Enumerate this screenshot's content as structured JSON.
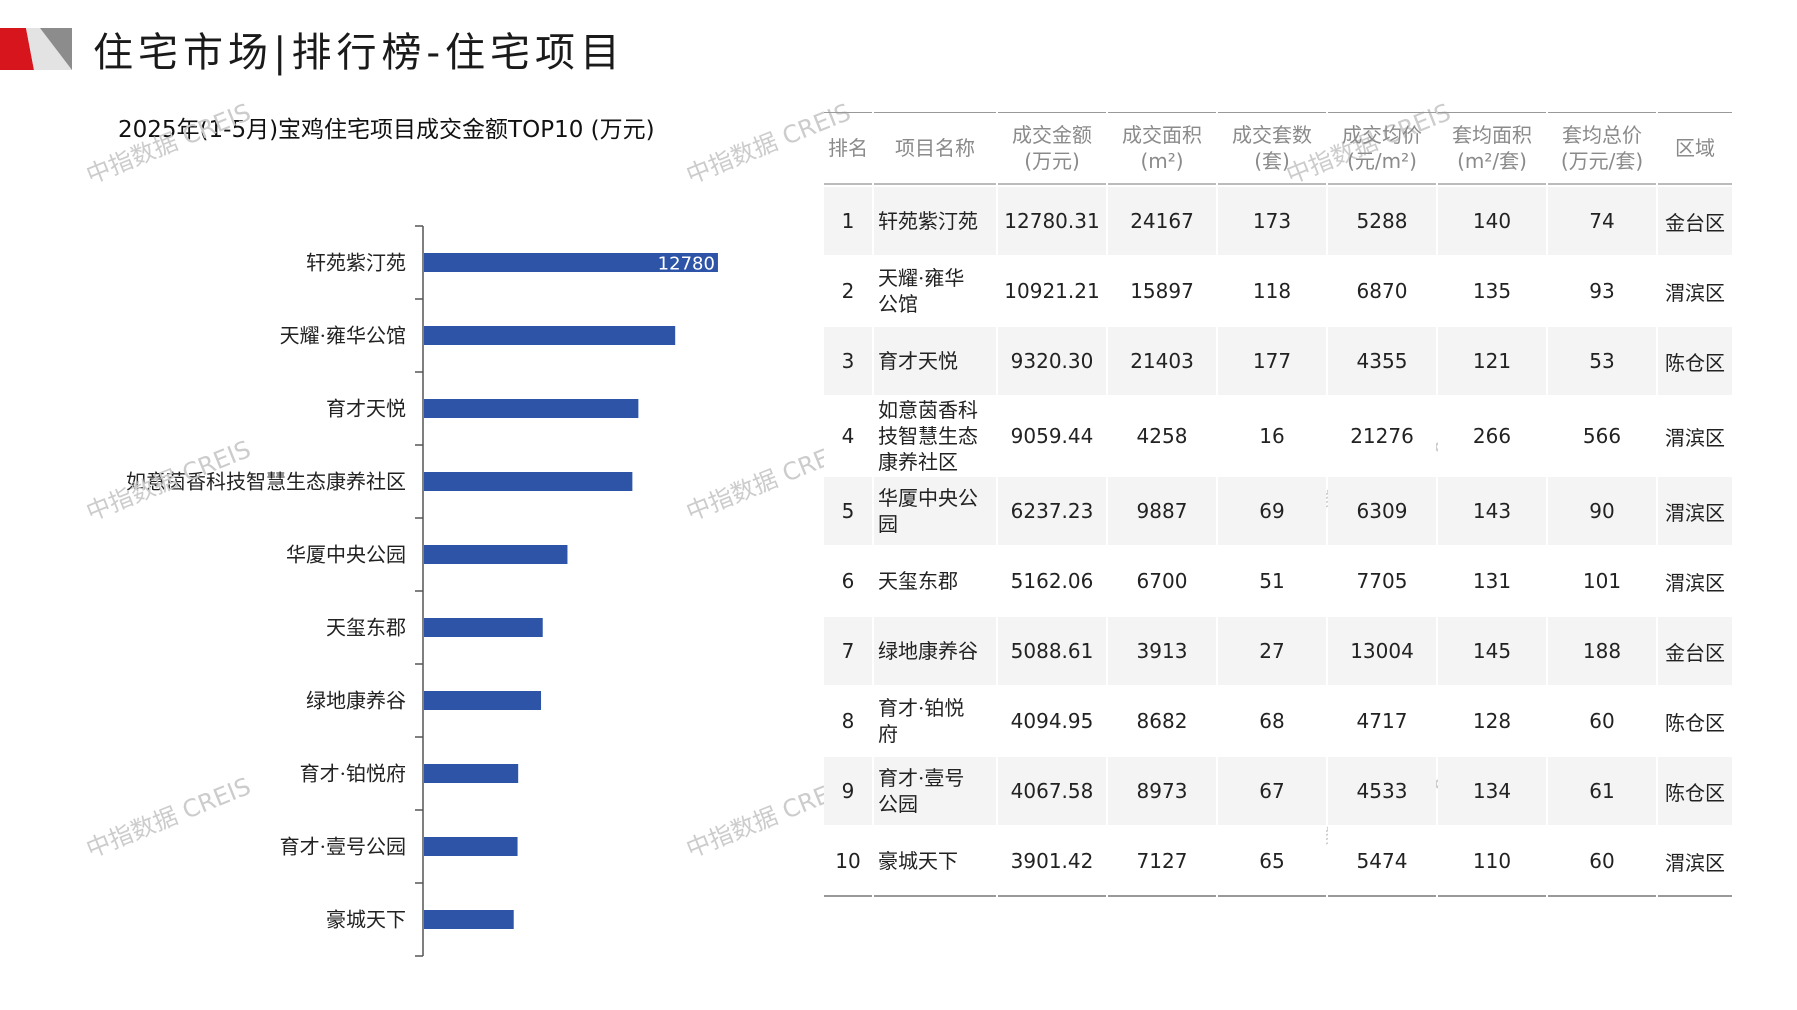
{
  "page_title": "住宅市场|排行榜-住宅项目",
  "watermark": "中指数据 CREIS",
  "colors": {
    "bar": "#2e54a8",
    "logo_red": "#d6151c",
    "logo_gray": "#8c8c8c"
  },
  "chart_data": {
    "type": "bar",
    "orientation": "horizontal",
    "title": "2025年(1-5月)宝鸡住宅项目成交金额TOP10 (万元)",
    "categories": [
      "轩苑紫汀苑",
      "天耀·雍华公馆",
      "育才天悦",
      "如意茵香科技智慧生态康养社区",
      "华厦中央公园",
      "天玺东郡",
      "绿地康养谷",
      "育才·铂悦府",
      "育才·壹号公园",
      "豪城天下"
    ],
    "values": [
      12780.31,
      10921.21,
      9320.3,
      9059.44,
      6237.23,
      5162.06,
      5088.61,
      4094.95,
      4067.58,
      3901.42
    ],
    "data_labels": [
      "12780",
      "",
      "",
      "",
      "",
      "",
      "",
      "",
      "",
      ""
    ],
    "xlim": [
      0,
      14000
    ]
  },
  "table": {
    "headers": [
      [
        "排名"
      ],
      [
        "项目名称"
      ],
      [
        "成交金额",
        "(万元)"
      ],
      [
        "成交面积",
        "(m²)"
      ],
      [
        "成交套数",
        "(套)"
      ],
      [
        "成交均价",
        "(元/m²)"
      ],
      [
        "套均面积",
        "(m²/套)"
      ],
      [
        "套均总价",
        "(万元/套)"
      ],
      [
        "区域"
      ]
    ],
    "rows": [
      {
        "rank": "1",
        "name": [
          "轩苑紫汀苑"
        ],
        "amount": "12780.31",
        "area": "24167",
        "units": "173",
        "price": "5288",
        "avg_area": "140",
        "avg_total": "74",
        "district": "金台区"
      },
      {
        "rank": "2",
        "name": [
          "天耀·雍华",
          "公馆"
        ],
        "amount": "10921.21",
        "area": "15897",
        "units": "118",
        "price": "6870",
        "avg_area": "135",
        "avg_total": "93",
        "district": "渭滨区"
      },
      {
        "rank": "3",
        "name": [
          "育才天悦"
        ],
        "amount": "9320.30",
        "area": "21403",
        "units": "177",
        "price": "4355",
        "avg_area": "121",
        "avg_total": "53",
        "district": "陈仓区"
      },
      {
        "rank": "4",
        "name": [
          "如意茵香科",
          "技智慧生态",
          "康养社区"
        ],
        "amount": "9059.44",
        "area": "4258",
        "units": "16",
        "price": "21276",
        "avg_area": "266",
        "avg_total": "566",
        "district": "渭滨区"
      },
      {
        "rank": "5",
        "name": [
          "华厦中央公",
          "园"
        ],
        "amount": "6237.23",
        "area": "9887",
        "units": "69",
        "price": "6309",
        "avg_area": "143",
        "avg_total": "90",
        "district": "渭滨区"
      },
      {
        "rank": "6",
        "name": [
          "天玺东郡"
        ],
        "amount": "5162.06",
        "area": "6700",
        "units": "51",
        "price": "7705",
        "avg_area": "131",
        "avg_total": "101",
        "district": "渭滨区"
      },
      {
        "rank": "7",
        "name": [
          "绿地康养谷"
        ],
        "amount": "5088.61",
        "area": "3913",
        "units": "27",
        "price": "13004",
        "avg_area": "145",
        "avg_total": "188",
        "district": "金台区"
      },
      {
        "rank": "8",
        "name": [
          "育才·铂悦",
          "府"
        ],
        "amount": "4094.95",
        "area": "8682",
        "units": "68",
        "price": "4717",
        "avg_area": "128",
        "avg_total": "60",
        "district": "陈仓区"
      },
      {
        "rank": "9",
        "name": [
          "育才·壹号",
          "公园"
        ],
        "amount": "4067.58",
        "area": "8973",
        "units": "67",
        "price": "4533",
        "avg_area": "134",
        "avg_total": "61",
        "district": "陈仓区"
      },
      {
        "rank": "10",
        "name": [
          "豪城天下"
        ],
        "amount": "3901.42",
        "area": "7127",
        "units": "65",
        "price": "5474",
        "avg_area": "110",
        "avg_total": "60",
        "district": "渭滨区"
      }
    ]
  }
}
